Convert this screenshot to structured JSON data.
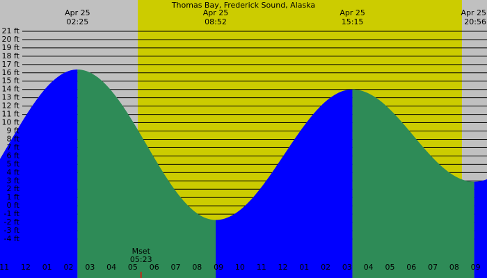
{
  "chart_data": {
    "type": "tide",
    "title": "Thomas Bay, Frederick Sound, Alaska",
    "extremes": [
      {
        "date": "Apr 25",
        "time": "02:25",
        "height": 16.4
      },
      {
        "date": "Apr 25",
        "time": "08:52",
        "height": -1.7
      },
      {
        "date": "Apr 25",
        "time": "15:15",
        "height": 14.0
      },
      {
        "date": "Apr 25",
        "time": "20:56",
        "height": 2.9
      }
    ],
    "moonset": {
      "label": "Mset",
      "time": "05:23"
    },
    "daylight": [
      5.23,
      20.36
    ],
    "xlim": [
      -1.2,
      21.53
    ],
    "xticks": [
      {
        "value": -1,
        "label": "11"
      },
      {
        "value": 0,
        "label": "12"
      },
      {
        "value": 1,
        "label": "01"
      },
      {
        "value": 2,
        "label": "02"
      },
      {
        "value": 3,
        "label": "03"
      },
      {
        "value": 4,
        "label": "04"
      },
      {
        "value": 5,
        "label": "05"
      },
      {
        "value": 6,
        "label": "06"
      },
      {
        "value": 7,
        "label": "07"
      },
      {
        "value": 8,
        "label": "08"
      },
      {
        "value": 9,
        "label": "09"
      },
      10,
      11,
      12,
      {
        "value": 13,
        "label": "01"
      },
      {
        "value": 14,
        "label": "02"
      },
      {
        "value": 15,
        "label": "03"
      },
      {
        "value": 16,
        "label": "04"
      },
      {
        "value": 17,
        "label": "05"
      },
      {
        "value": 18,
        "label": "06"
      },
      {
        "value": 19,
        "label": "07"
      },
      {
        "value": 20,
        "label": "08"
      },
      {
        "value": 21,
        "label": "09"
      }
    ],
    "ylim": [
      -8.68,
      24.76
    ],
    "yticks": [
      {
        "value": 21,
        "label": "21 ft"
      },
      {
        "value": 20,
        "label": "20 ft"
      },
      {
        "value": 19,
        "label": "19 ft"
      },
      {
        "value": 18,
        "label": "18 ft"
      },
      {
        "value": 17,
        "label": "17 ft"
      },
      {
        "value": 16,
        "label": "16 ft"
      },
      {
        "value": 15,
        "label": "15 ft"
      },
      {
        "value": 14,
        "label": "14 ft"
      },
      {
        "value": 13,
        "label": "13 ft"
      },
      {
        "value": 12,
        "label": "12 ft"
      },
      {
        "value": 11,
        "label": "11 ft"
      },
      {
        "value": 10,
        "label": "10 ft"
      },
      {
        "value": 9,
        "label": "9 ft"
      },
      {
        "value": 8,
        "label": "8 ft"
      },
      {
        "value": 7,
        "label": "7 ft"
      },
      {
        "value": 6,
        "label": "6 ft"
      },
      {
        "value": 5,
        "label": "5 ft"
      },
      {
        "value": 4,
        "label": "4 ft"
      },
      {
        "value": 3,
        "label": "3 ft"
      },
      {
        "value": 2,
        "label": "2 ft"
      },
      {
        "value": 1,
        "label": "1 ft"
      },
      {
        "value": 0,
        "label": "0 ft"
      },
      {
        "value": -1,
        "label": "-1 ft"
      },
      {
        "value": -2,
        "label": "-2 ft"
      },
      {
        "value": -3,
        "label": "-3 ft"
      },
      {
        "value": -4,
        "label": "-4 ft"
      }
    ],
    "colors": {
      "night": "#c0c0c0",
      "day": "#cccc00",
      "rising": "#0000ff",
      "falling": "#2e8b57",
      "grid": "#000000",
      "moonset": "#ff0000"
    },
    "grid": true
  }
}
